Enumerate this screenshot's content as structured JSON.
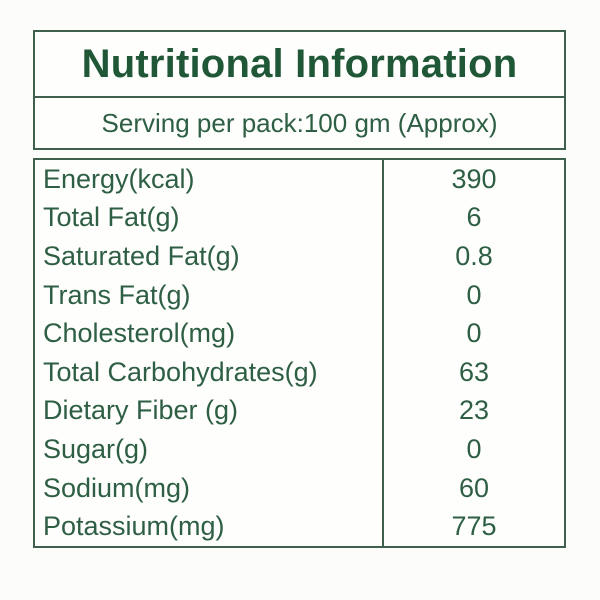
{
  "colors": {
    "title_green": "#1f5737",
    "text_green": "#2e5f44",
    "border_green": "#40604e",
    "background": "#fcfcfa"
  },
  "header": {
    "title": "Nutritional Information"
  },
  "serving": {
    "text": "Serving per pack:100 gm (Approx)"
  },
  "table": {
    "rows": [
      {
        "label": "Energy(kcal)",
        "value": "390"
      },
      {
        "label": "Total Fat(g)",
        "value": "6"
      },
      {
        "label": "Saturated Fat(g)",
        "value": "0.8"
      },
      {
        "label": "Trans Fat(g)",
        "value": "0"
      },
      {
        "label": "Cholesterol(mg)",
        "value": "0"
      },
      {
        "label": "Total Carbohydrates(g)",
        "value": "63"
      },
      {
        "label": "Dietary Fiber (g)",
        "value": "23"
      },
      {
        "label": "Sugar(g)",
        "value": "0"
      },
      {
        "label": "Sodium(mg)",
        "value": "60"
      },
      {
        "label": "Potassium(mg)",
        "value": "775"
      }
    ]
  }
}
